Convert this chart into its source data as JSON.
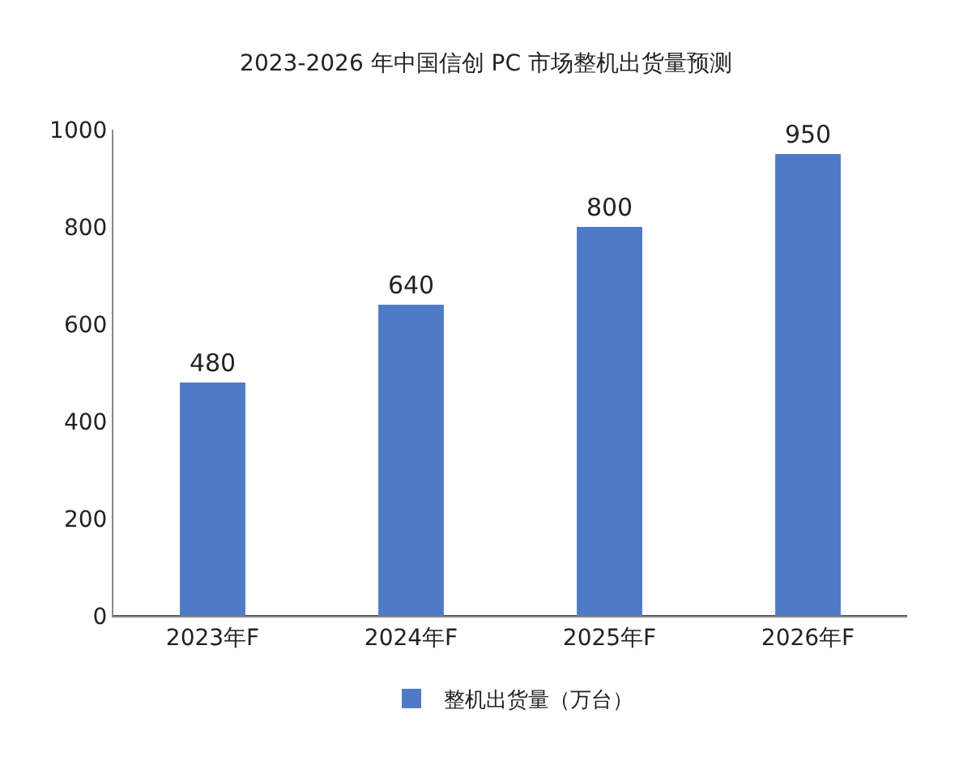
{
  "chart_data": {
    "type": "bar",
    "title": "2023-2026 年中国信创 PC 市场整机出货量预测",
    "categories": [
      "2023年F",
      "2024年F",
      "2025年F",
      "2026年F"
    ],
    "series": [
      {
        "name": "整机出货量（万台）",
        "color": "#4f7ac7",
        "values": [
          480,
          640,
          800,
          950
        ]
      }
    ],
    "ylim": [
      0,
      1000
    ],
    "yticks": [
      0,
      200,
      400,
      600,
      800,
      1000
    ],
    "grid": false,
    "legend": "bottom",
    "data_labels": true
  }
}
